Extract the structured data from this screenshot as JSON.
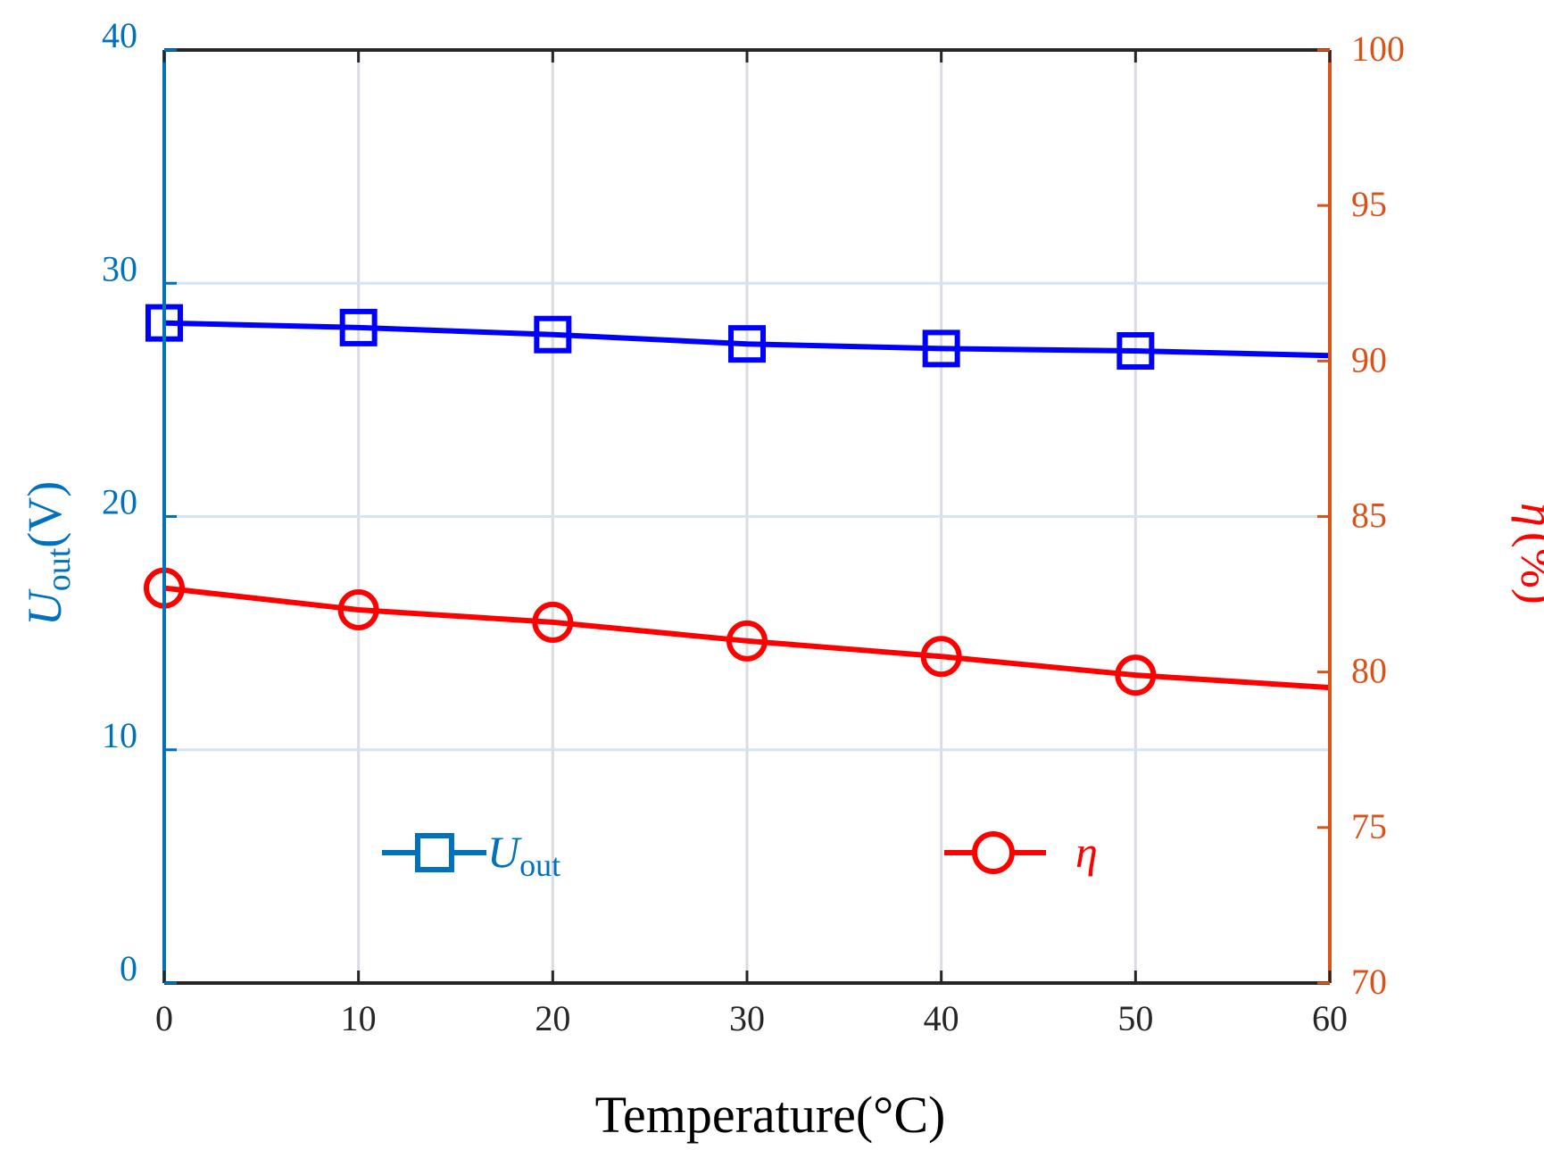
{
  "chart_data": {
    "type": "line",
    "xlabel": "Temperature(°C)",
    "x_range": [
      0,
      60
    ],
    "x_ticks": [
      0,
      10,
      20,
      30,
      40,
      50,
      60
    ],
    "x_tick_labels": [
      "0",
      "10",
      "20",
      "30",
      "40",
      "50",
      "60"
    ],
    "y_left": {
      "label_main": "U",
      "label_sub": "out",
      "label_unit": "(V)",
      "range": [
        0,
        40
      ],
      "ticks": [
        0,
        10,
        20,
        30,
        40
      ],
      "tick_labels": [
        "0",
        "10",
        "20",
        "30",
        "40"
      ],
      "color": "#0072BD"
    },
    "y_right": {
      "label_main": "η",
      "label_unit": "(%)",
      "range": [
        70,
        100
      ],
      "ticks": [
        70,
        75,
        80,
        85,
        90,
        95,
        100
      ],
      "tick_labels": [
        "70",
        "75",
        "80",
        "85",
        "90",
        "95",
        "100"
      ],
      "color": "#D95319",
      "label_color": "#FF0000"
    },
    "grid": true,
    "series": [
      {
        "name": "U_out",
        "legend_main": "U",
        "legend_sub": "out",
        "axis": "left",
        "color": "#0000FF",
        "legend_color": "#0072BD",
        "marker": "square",
        "x": [
          0,
          10,
          20,
          30,
          40,
          50,
          60
        ],
        "values": [
          28.3,
          28.1,
          27.8,
          27.4,
          27.2,
          27.1,
          26.9
        ],
        "marker_indices": [
          0,
          1,
          2,
          3,
          4,
          5
        ]
      },
      {
        "name": "η",
        "legend_main": "η",
        "axis": "right",
        "color": "#FF0000",
        "legend_color": "#FF0000",
        "marker": "circle",
        "x": [
          0,
          10,
          20,
          30,
          40,
          50,
          60
        ],
        "values": [
          82.7,
          82.0,
          81.6,
          81.0,
          80.5,
          79.9,
          79.5
        ],
        "marker_indices": [
          0,
          1,
          2,
          3,
          4,
          5
        ]
      }
    ],
    "legend_placement": "inside-bottom"
  }
}
